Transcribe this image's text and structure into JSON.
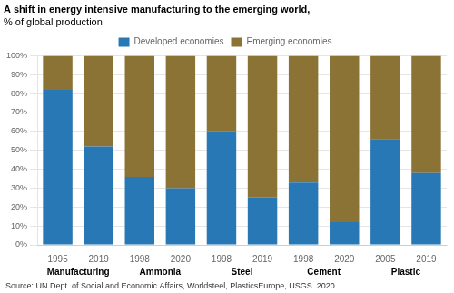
{
  "chart_data": {
    "type": "bar",
    "title": "A shift in energy intensive manufacturing to the emerging world,",
    "subtitle": "% of global production",
    "annotations": [
      "Source: UN Dept. of Social and Economic Affairs, Worldsteel, PlasticsEurope, USGS. 2020."
    ],
    "categories": [
      "1995",
      "2019",
      "1998",
      "2020",
      "1998",
      "2019",
      "1998",
      "2020",
      "2005",
      "2019"
    ],
    "groups": [
      "Manufacturing",
      "Ammonia",
      "Steel",
      "Cement",
      "Plastic"
    ],
    "series": [
      {
        "name": "Developed economies",
        "color": "#2878b5",
        "values": [
          82,
          52,
          36,
          30,
          60,
          25,
          33,
          12,
          56,
          38
        ]
      },
      {
        "name": "Emerging economies",
        "color": "#8B7336",
        "values": [
          18,
          48,
          64,
          70,
          40,
          75,
          67,
          88,
          44,
          62
        ]
      }
    ],
    "stacked": true,
    "ylim": [
      0,
      100
    ],
    "yticks": [
      {
        "value": 0,
        "label": "0%"
      },
      {
        "value": 10,
        "label": "10%"
      },
      {
        "value": 20,
        "label": "20%"
      },
      {
        "value": 30,
        "label": "30%"
      },
      {
        "value": 40,
        "label": "40%"
      },
      {
        "value": 50,
        "label": "50%"
      },
      {
        "value": 60,
        "label": "60%"
      },
      {
        "value": 70,
        "label": "70%"
      },
      {
        "value": 80,
        "label": "80%"
      },
      {
        "value": 90,
        "label": "90%"
      },
      {
        "value": 100,
        "label": "100%"
      }
    ],
    "grid": true,
    "legend": "top"
  }
}
